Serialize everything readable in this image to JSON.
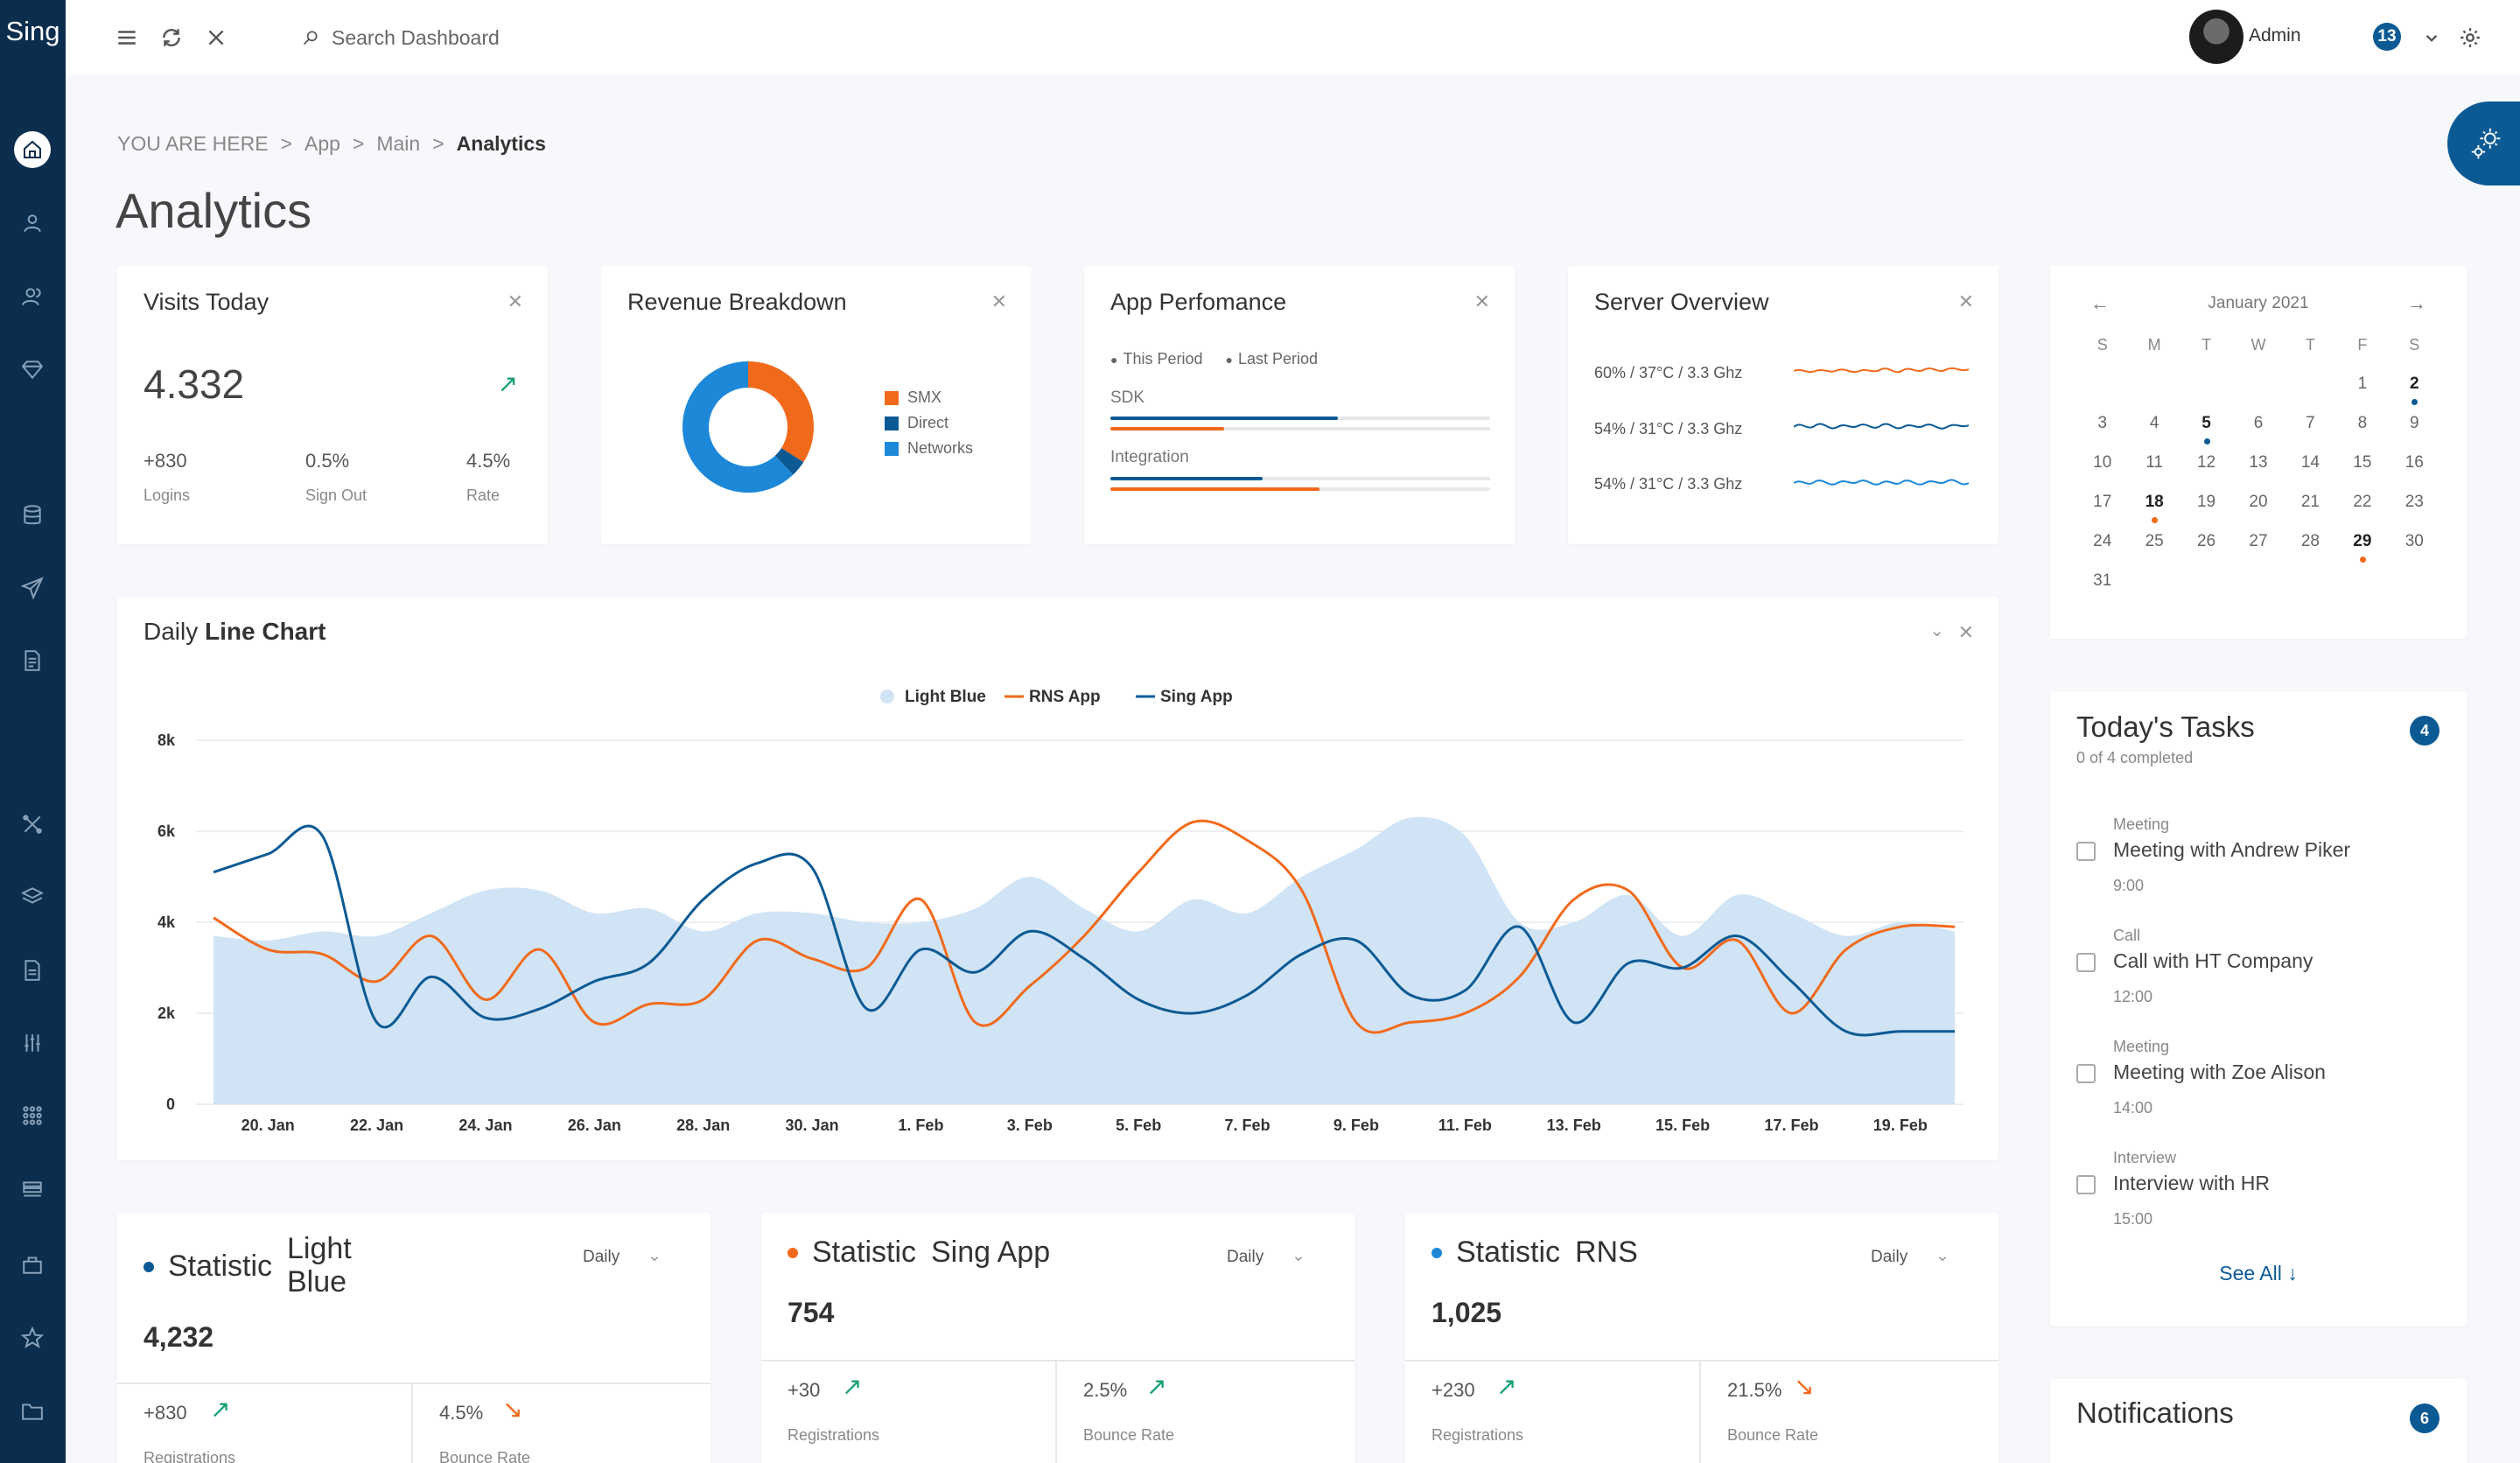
{
  "app": {
    "logo": "Sing"
  },
  "header": {
    "search_placeholder": "Search Dashboard",
    "user_name": "Admin",
    "notification_count": "13"
  },
  "breadcrumb": {
    "prefix": "YOU ARE HERE",
    "sep": ">",
    "items": [
      "App",
      "Main"
    ],
    "current": "Analytics"
  },
  "page_title": "Analytics",
  "visits": {
    "title": "Visits Today",
    "value": "4.332",
    "stats": [
      {
        "value": "+830",
        "label": "Logins"
      },
      {
        "value": "0.5%",
        "label": "Sign Out"
      },
      {
        "value": "4.5%",
        "label": "Rate"
      }
    ]
  },
  "revenue": {
    "title": "Revenue Breakdown",
    "legend": [
      "SMX",
      "Direct",
      "Networks"
    ],
    "colors": [
      "#f16a1c",
      "#0c5a94",
      "#1e88d8"
    ],
    "shares": [
      0.34,
      0.04,
      0.62
    ]
  },
  "performance": {
    "title": "App Perfomance",
    "legend": [
      "This Period",
      "Last Period"
    ],
    "colors": [
      "#f16a1c",
      "#0c5a94"
    ],
    "rows": [
      {
        "label": "SDK",
        "this_period": 0.3,
        "last_period": 0.6
      },
      {
        "label": "Integration",
        "this_period": 0.55,
        "last_period": 0.4
      }
    ]
  },
  "server": {
    "title": "Server Overview",
    "rows": [
      "60% / 37°C / 3.3 Ghz",
      "54% / 31°C / 3.3 Ghz",
      "54% / 31°C / 3.3 Ghz"
    ],
    "colors": [
      "#f16a1c",
      "#0c5a94",
      "#1e88d8"
    ]
  },
  "calendar": {
    "month": "January 2021",
    "weekdays": [
      "S",
      "M",
      "T",
      "W",
      "T",
      "F",
      "S"
    ],
    "first_weekday": 5,
    "days": 31,
    "events": [
      {
        "day": 2,
        "color": "blue"
      },
      {
        "day": 5,
        "color": "blue"
      },
      {
        "day": 18,
        "color": "orange"
      },
      {
        "day": 29,
        "color": "orange"
      }
    ]
  },
  "line_chart": {
    "title_prefix": "Daily",
    "title_bold": "Line Chart"
  },
  "chart_data": {
    "type": "line",
    "x": [
      "19. Jan",
      "20. Jan",
      "21. Jan",
      "22. Jan",
      "23. Jan",
      "24. Jan",
      "25. Jan",
      "26. Jan",
      "27. Jan",
      "28. Jan",
      "29. Jan",
      "30. Jan",
      "31. Jan",
      "1. Feb",
      "2. Feb",
      "3. Feb",
      "4. Feb",
      "5. Feb",
      "6. Feb",
      "7. Feb",
      "8. Feb",
      "9. Feb",
      "10. Feb",
      "11. Feb",
      "12. Feb",
      "13. Feb",
      "14. Feb",
      "15. Feb",
      "16. Feb",
      "17. Feb",
      "18. Feb",
      "19. Feb",
      "20. Feb"
    ],
    "x_tick_labels": [
      "20. Jan",
      "22. Jan",
      "24. Jan",
      "26. Jan",
      "28. Jan",
      "30. Jan",
      "1. Feb",
      "3. Feb",
      "5. Feb",
      "7. Feb",
      "9. Feb",
      "11. Feb",
      "13. Feb",
      "15. Feb",
      "17. Feb",
      "19. Feb"
    ],
    "y_tick_labels": [
      "0",
      "2k",
      "4k",
      "6k",
      "8k"
    ],
    "ylim": [
      0,
      8000
    ],
    "grid": true,
    "legend_position": "top-center",
    "series": [
      {
        "name": "Light Blue",
        "type": "area",
        "color": "#d0e4f5",
        "values": [
          3700,
          3600,
          3800,
          3700,
          4200,
          4700,
          4700,
          4200,
          4300,
          3800,
          4200,
          4200,
          4000,
          4000,
          4300,
          5000,
          4300,
          3800,
          4500,
          4200,
          5000,
          5600,
          6300,
          5900,
          4000,
          4000,
          4600,
          3700,
          4600,
          4200,
          3700,
          4000,
          3800
        ]
      },
      {
        "name": "RNS App",
        "type": "line",
        "color": "#f16a1c",
        "values": [
          4100,
          3400,
          3300,
          2700,
          3700,
          2300,
          3400,
          1800,
          2200,
          2300,
          3600,
          3200,
          3000,
          4500,
          1800,
          2600,
          3700,
          5100,
          6200,
          5800,
          4700,
          1800,
          1800,
          2000,
          2800,
          4500,
          4700,
          3000,
          3600,
          2000,
          3400,
          3900,
          3900
        ]
      },
      {
        "name": "Sing App",
        "type": "line",
        "color": "#0c5a94",
        "values": [
          5100,
          5500,
          5900,
          1800,
          2800,
          1900,
          2100,
          2700,
          3100,
          4500,
          5300,
          5200,
          2100,
          3400,
          2900,
          3800,
          3200,
          2300,
          2000,
          2400,
          3300,
          3600,
          2400,
          2500,
          3900,
          1800,
          3100,
          3000,
          3700,
          2700,
          1600,
          1600,
          1600
        ]
      }
    ]
  },
  "tasks": {
    "title": "Today's Tasks",
    "subtitle": "0 of 4 completed",
    "count": "4",
    "items": [
      {
        "type": "Meeting",
        "name": "Meeting with Andrew Piker",
        "time": "9:00"
      },
      {
        "type": "Call",
        "name": "Call with HT Company",
        "time": "12:00"
      },
      {
        "type": "Meeting",
        "name": "Meeting with Zoe Alison",
        "time": "14:00"
      },
      {
        "type": "Interview",
        "name": "Interview with HR",
        "time": "15:00"
      }
    ],
    "see_all": "See All ↓"
  },
  "notifications": {
    "title": "Notifications",
    "count": "6"
  },
  "stat_cards": [
    {
      "prefix": "Statistic",
      "name": "Light Blue",
      "dot_color": "#0c5a94",
      "period": "Daily",
      "value": "4,232",
      "left": {
        "value": "+830",
        "label": "Registrations",
        "trend": "up"
      },
      "right": {
        "value": "4.5%",
        "label": "Bounce Rate",
        "trend": "down"
      }
    },
    {
      "prefix": "Statistic",
      "name": "Sing App",
      "dot_color": "#f16a1c",
      "period": "Daily",
      "value": "754",
      "left": {
        "value": "+30",
        "label": "Registrations",
        "trend": "up"
      },
      "right": {
        "value": "2.5%",
        "label": "Bounce Rate",
        "trend": "up"
      }
    },
    {
      "prefix": "Statistic",
      "name": "RNS",
      "dot_color": "#1e88d8",
      "period": "Daily",
      "value": "1,025",
      "left": {
        "value": "+230",
        "label": "Registrations",
        "trend": "up"
      },
      "right": {
        "value": "21.5%",
        "label": "Bounce Rate",
        "trend": "down"
      }
    }
  ]
}
